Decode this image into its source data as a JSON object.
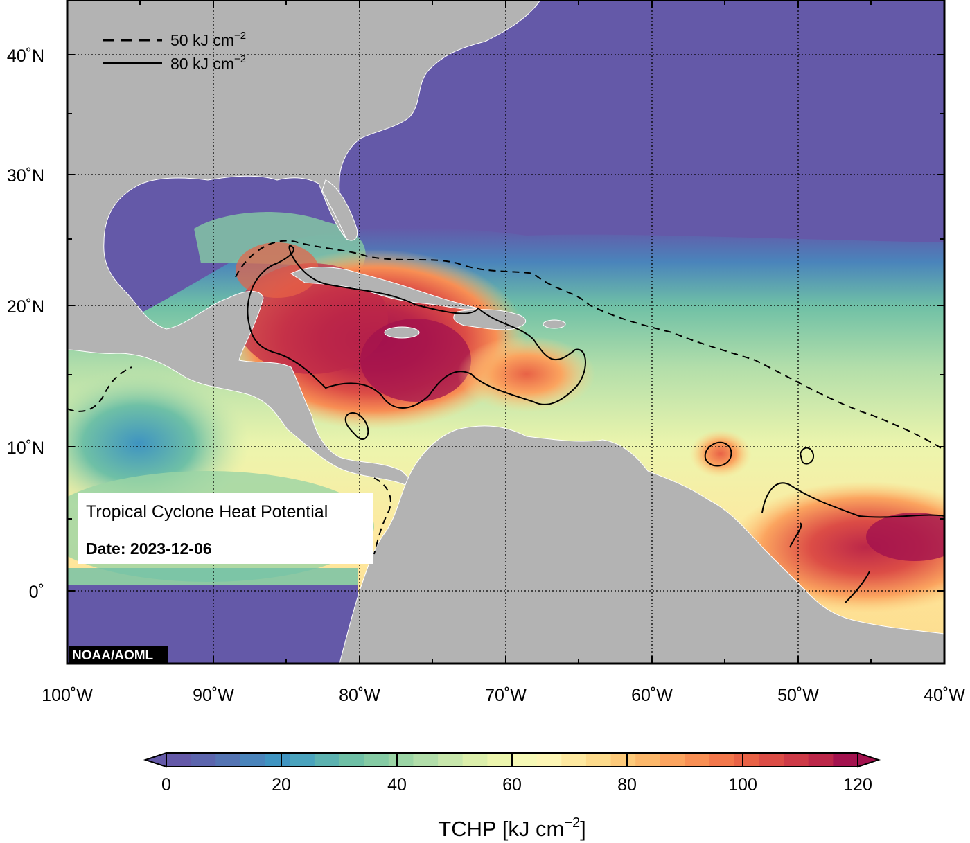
{
  "map": {
    "title": "Tropical Cyclone Heat Potential",
    "date_label": "Date: 2023-12-06",
    "credit": "NOAA/AOML",
    "colors": {
      "land": "#b3b3b3",
      "cold_ocean": "#6459a8",
      "hot_ocean": "#a3124e"
    }
  },
  "axes": {
    "lat_labels": [
      "40˚N",
      "30˚N",
      "20˚N",
      "10˚N",
      "0˚"
    ],
    "lon_labels": [
      "100˚W",
      "90˚W",
      "80˚W",
      "70˚W",
      "60˚W",
      "50˚W",
      "40˚W"
    ]
  },
  "legend": {
    "dashed_label": "50 kJ cm",
    "solid_label": "80 kJ cm",
    "exponent": "−2"
  },
  "colorbar": {
    "ticks": [
      "0",
      "20",
      "40",
      "60",
      "80",
      "100",
      "120"
    ],
    "title_main": "TCHP [kJ cm",
    "title_exp": "−2",
    "title_close": "]",
    "colors": [
      "#6459a8",
      "#5c65ad",
      "#5474b3",
      "#4a84bb",
      "#3f94c1",
      "#4aa3bd",
      "#5cb2b0",
      "#6fc0a6",
      "#85cba4",
      "#9bd5a5",
      "#b2deaa",
      "#c8e7ac",
      "#dcefab",
      "#ecf5ad",
      "#f6f9b6",
      "#fdf6b5",
      "#fee9a0",
      "#fddb8c",
      "#fdca7a",
      "#fcb86b",
      "#fba45f",
      "#f88f54",
      "#f2774b",
      "#e86246",
      "#dc4d46",
      "#cd3a47",
      "#bc2749",
      "#a3124e"
    ]
  }
}
